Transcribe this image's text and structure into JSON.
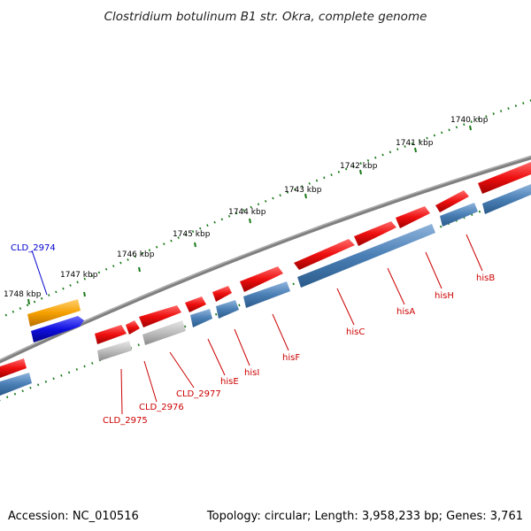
{
  "title": "Clostridium botulinum B1 str. Okra, complete genome",
  "footer": {
    "accession": "Accession: NC_010516",
    "summary": "Topology: circular; Length: 3,958,233 bp; Genes: 3,761"
  },
  "colors": {
    "backbone": "#808080",
    "ticks": "#1a7a1a",
    "forward_gene": "#ee1111",
    "reverse_gene": "#4a7fb5",
    "grey_gene": "#bdbdbd",
    "orange_gene": "#f5a000",
    "blue_gene": "#1010e0",
    "label_red": "#cc0000",
    "label_blue": "#0000cc"
  },
  "scale_ticks": [
    "1740 kbp",
    "1741 kbp",
    "1742 kbp",
    "1743 kbp",
    "1744 kbp",
    "1745 kbp",
    "1746 kbp",
    "1747 kbp",
    "1748 kbp"
  ],
  "gene_labels": [
    "hisB",
    "hisH",
    "hisA",
    "hisC",
    "hisF",
    "hisI",
    "hisE",
    "CLD_2977",
    "CLD_2976",
    "CLD_2975",
    "CLD_2974"
  ]
}
